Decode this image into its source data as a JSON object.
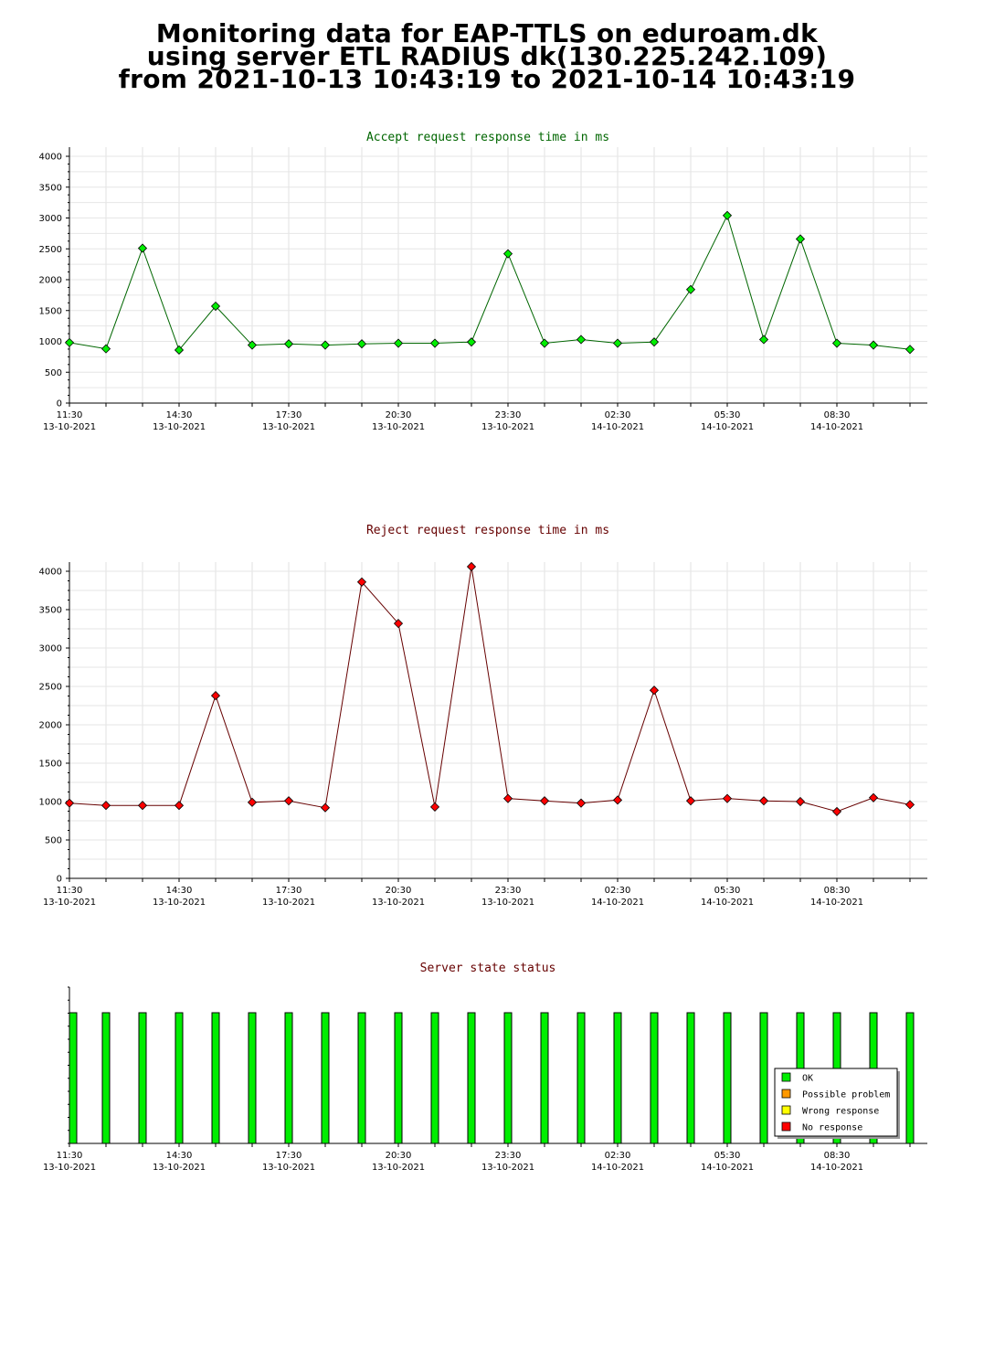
{
  "header": {
    "line1": "Monitoring data for EAP-TTLS on eduroam.dk",
    "line2": "using server ETL RADIUS dk(130.225.242.109)",
    "line3": "from 2021-10-13 10:43:19 to 2021-10-14 10:43:19"
  },
  "colors": {
    "accept_title": "#006600",
    "reject_title": "#660000",
    "accept_line": "#006600",
    "accept_marker": "#00ee00",
    "reject_line": "#660000",
    "reject_marker": "#ff0000",
    "ok": "#00ee00",
    "possible_problem": "#ff9900",
    "wrong_response": "#ffff00",
    "no_response": "#ff0000"
  },
  "x_tick_labels": [
    {
      "time": "11:30",
      "date": "13-10-2021"
    },
    {
      "time": "14:30",
      "date": "13-10-2021"
    },
    {
      "time": "17:30",
      "date": "13-10-2021"
    },
    {
      "time": "20:30",
      "date": "13-10-2021"
    },
    {
      "time": "23:30",
      "date": "13-10-2021"
    },
    {
      "time": "02:30",
      "date": "14-10-2021"
    },
    {
      "time": "05:30",
      "date": "14-10-2021"
    },
    {
      "time": "08:30",
      "date": "14-10-2021"
    }
  ],
  "chart_data": [
    {
      "type": "line",
      "title": "Accept request response time in ms",
      "ylim": [
        0,
        4000
      ],
      "yticks": [
        "0",
        "500",
        "1000",
        "1500",
        "2000",
        "2500",
        "3000",
        "3500",
        "4000"
      ],
      "grid": true,
      "values": [
        980,
        880,
        2510,
        860,
        1570,
        940,
        960,
        940,
        960,
        970,
        970,
        990,
        2420,
        970,
        1030,
        970,
        990,
        1840,
        3040,
        1030,
        2660,
        970,
        940,
        870
      ]
    },
    {
      "type": "line",
      "title": "Reject request response time in ms",
      "ylim": [
        0,
        4000
      ],
      "yticks": [
        "0",
        "500",
        "1000",
        "1500",
        "2000",
        "2500",
        "3000",
        "3500",
        "4000"
      ],
      "grid": true,
      "values": [
        980,
        950,
        950,
        950,
        2380,
        990,
        1010,
        920,
        3860,
        3320,
        930,
        4060,
        1040,
        1010,
        980,
        1020,
        2450,
        1010,
        1040,
        1010,
        1000,
        870,
        1050,
        960
      ]
    },
    {
      "type": "bar",
      "title": "Server state status",
      "grid": false,
      "legend_placement": "bottom-right",
      "legend": [
        "OK",
        "Possible problem",
        "Wrong response",
        "No response"
      ],
      "status": [
        "OK",
        "OK",
        "OK",
        "OK",
        "OK",
        "OK",
        "OK",
        "OK",
        "OK",
        "OK",
        "OK",
        "OK",
        "OK",
        "OK",
        "OK",
        "OK",
        "OK",
        "OK",
        "OK",
        "OK",
        "OK",
        "OK",
        "OK",
        "OK"
      ]
    }
  ]
}
